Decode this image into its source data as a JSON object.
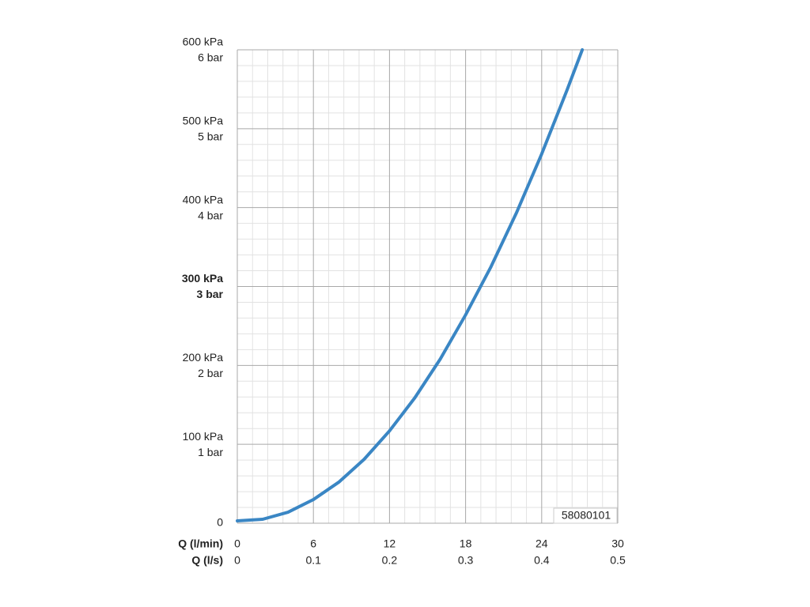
{
  "chart_data": {
    "type": "line",
    "xlabel": "Q (l/min)",
    "x2label": "Q (l/s)",
    "xlim": [
      0,
      30
    ],
    "xticks": [
      0,
      6,
      12,
      18,
      24,
      30
    ],
    "x2lim": [
      0,
      0.5
    ],
    "x2ticks": [
      0,
      0.1,
      0.2,
      0.3,
      0.4,
      0.5
    ],
    "ylim": [
      0,
      600
    ],
    "yticks": [
      0,
      {
        "value": 100,
        "label": "100 kPa",
        "label_bar": "1 bar"
      },
      {
        "value": 200,
        "label": "200 kPa",
        "label_bar": "2 bar"
      },
      {
        "value": 300,
        "label": "300 kPa",
        "label_bar": "3 bar",
        "bold": true
      },
      {
        "value": 400,
        "label": "400 kPa",
        "label_bar": "4 bar"
      },
      {
        "value": 500,
        "label": "500 kPa",
        "label_bar": "5 bar"
      },
      {
        "value": 600,
        "label": "600 kPa",
        "label_bar": "6 bar"
      }
    ],
    "grid": true,
    "minor_divisions": 5,
    "annotation": "58080101",
    "series": [
      {
        "color": "#3a86c4",
        "x": [
          0,
          2,
          4,
          6,
          8,
          10,
          12,
          14,
          16,
          18,
          20,
          22,
          24,
          26,
          27.2
        ],
        "values": [
          3,
          5,
          14,
          30,
          52,
          81,
          117,
          159,
          208,
          264,
          325,
          393,
          468,
          549,
          600
        ]
      }
    ]
  }
}
